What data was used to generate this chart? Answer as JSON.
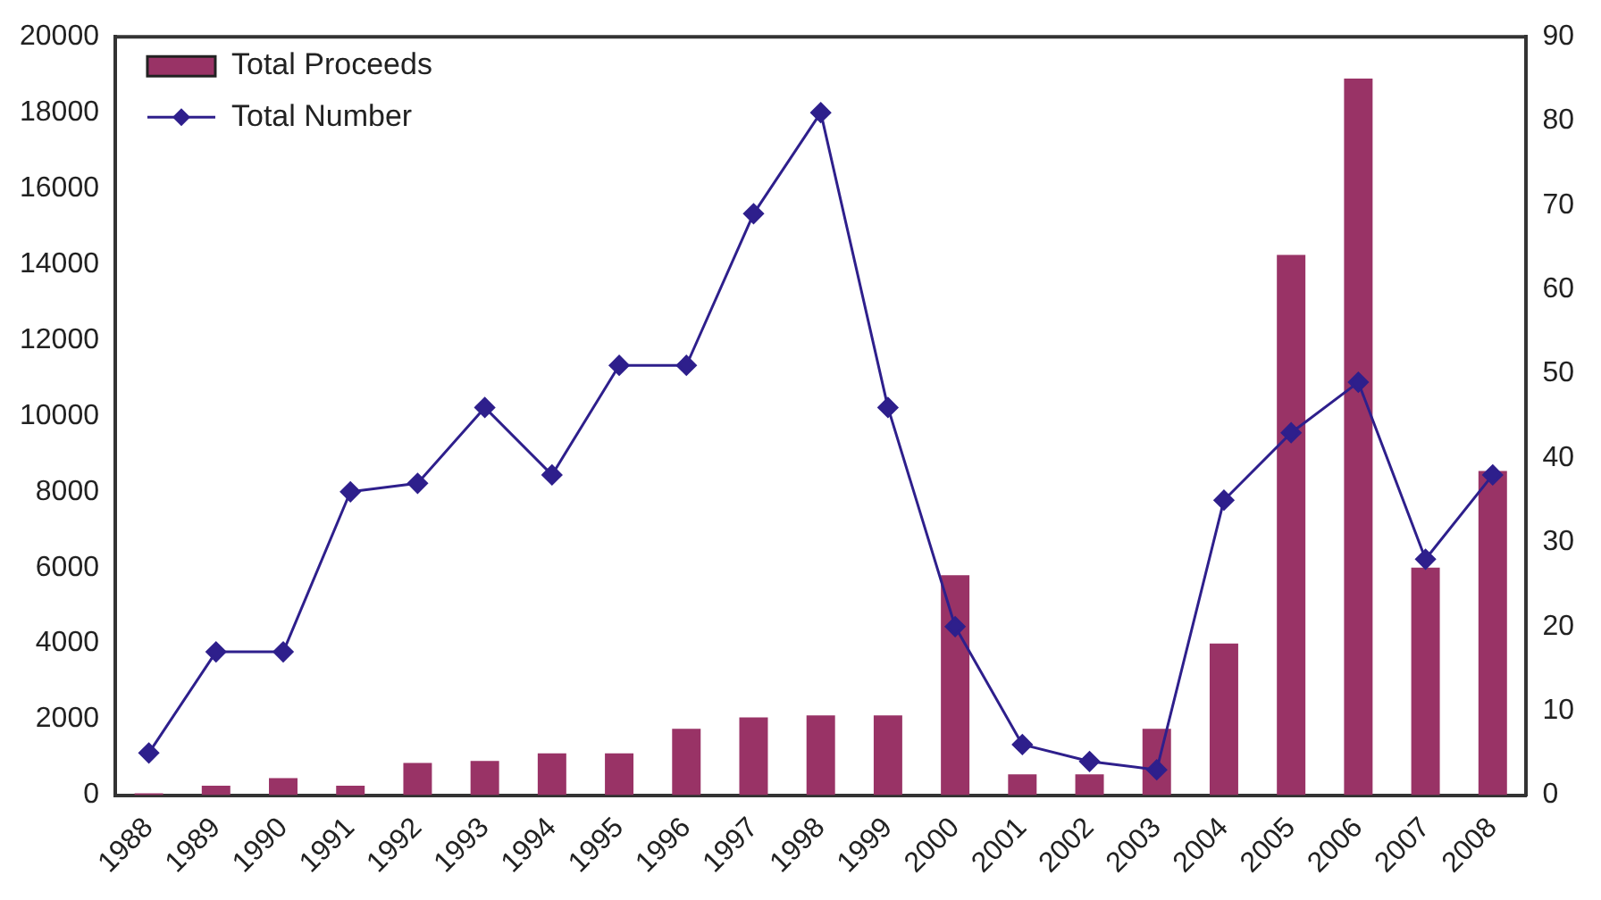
{
  "chart_data": {
    "type": "bar",
    "categories": [
      "1988",
      "1989",
      "1990",
      "1991",
      "1992",
      "1993",
      "1994",
      "1995",
      "1996",
      "1997",
      "1998",
      "1999",
      "2000",
      "2001",
      "2002",
      "2003",
      "2004",
      "2005",
      "2006",
      "2007",
      "2008"
    ],
    "series": [
      {
        "name": "Total Proceeds",
        "color": "#993366",
        "values": [
          50,
          250,
          450,
          250,
          850,
          900,
          1100,
          1100,
          1750,
          2050,
          2100,
          2100,
          5800,
          550,
          550,
          1750,
          4000,
          14250,
          18900,
          6000,
          8550
        ]
      },
      {
        "name": "Total Number",
        "type": "line",
        "axis": "y2",
        "color": "#2e1f8c",
        "values": [
          5,
          17,
          17,
          36,
          37,
          46,
          38,
          51,
          51,
          69,
          81,
          46,
          20,
          6,
          4,
          3,
          35,
          43,
          49,
          28,
          38
        ]
      }
    ],
    "ylim": [
      0,
      20000
    ],
    "yticks": [
      0,
      2000,
      4000,
      6000,
      8000,
      10000,
      12000,
      14000,
      16000,
      18000,
      20000
    ],
    "y2lim": [
      0,
      90
    ],
    "y2ticks": [
      0,
      10,
      20,
      30,
      40,
      50,
      60,
      70,
      80,
      90
    ],
    "grid": false,
    "legend": "top left",
    "marker": "diamond",
    "line_style": "solid"
  }
}
